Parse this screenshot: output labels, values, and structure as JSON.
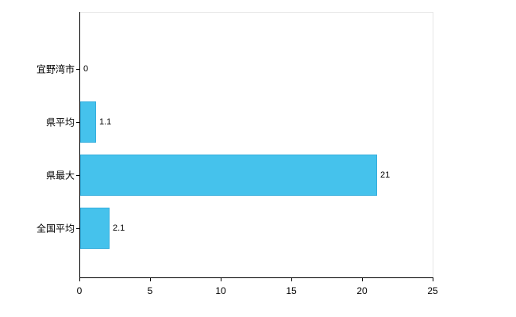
{
  "chart_data": {
    "type": "bar",
    "orientation": "horizontal",
    "title": "",
    "xlabel": "",
    "ylabel": "",
    "categories": [
      "宜野湾市",
      "県平均",
      "県最大",
      "全国平均"
    ],
    "values": [
      0,
      1.1,
      21,
      2.1
    ],
    "value_labels": [
      "0",
      "1.1",
      "21",
      "2.1"
    ],
    "xlim": [
      0,
      25
    ],
    "x_ticks": [
      0,
      5,
      10,
      15,
      20,
      25
    ],
    "x_tick_labels": [
      "0",
      "5",
      "10",
      "15",
      "20",
      "25"
    ],
    "grid": false,
    "legend": false,
    "bar_color": "#45c2ec",
    "bar_border_color": "#35aedd",
    "axis_color": "#000000",
    "background_color": "#ffffff"
  }
}
